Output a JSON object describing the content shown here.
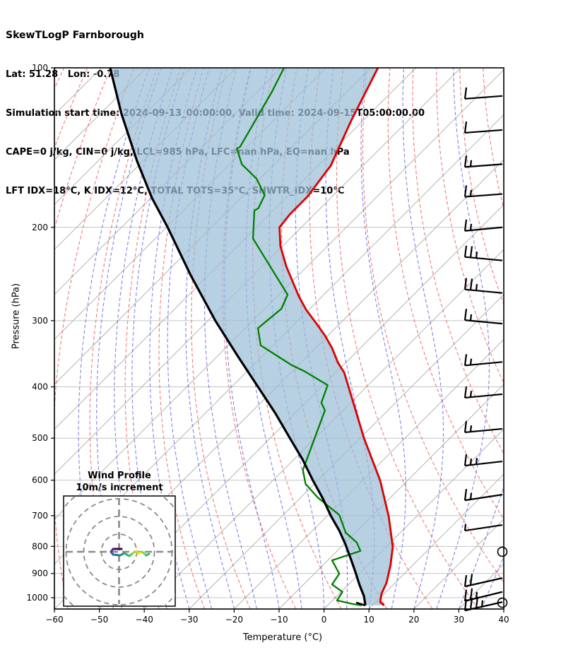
{
  "header": {
    "title": "SkewTLogP Farnborough",
    "latlon": "Lat: 51.28   Lon: -0.78",
    "sim_time": "Simulation start time: 2024-09-13_00:00:00, Valid time: 2024-09-15T05:00:00.00",
    "indices1": "CAPE=0 j/kg, CIN=0 j/kg, LCL=985 hPa, LFC=nan hPa, EQ=nan hPa",
    "indices2": "LFT IDX=18°C, K IDX=12°C, TOTAL TOTS=35°C, SHWTR_IDX=10°C"
  },
  "chart_data": {
    "type": "skewt_logp",
    "title": "SkewTLogP Farnborough",
    "xlabel": "Temperature (°C)",
    "ylabel": "Pressure (hPa)",
    "xlim": [
      -60,
      40
    ],
    "pressure_lim_hPa": [
      100,
      1050
    ],
    "x_ticks": [
      -60,
      -50,
      -40,
      -30,
      -20,
      -10,
      0,
      10,
      20,
      30,
      40
    ],
    "x_tick_labels": [
      "−60",
      "−50",
      "−40",
      "−30",
      "−20",
      "−10",
      "0",
      "10",
      "20",
      "30",
      "40"
    ],
    "y_ticks_hPa": [
      100,
      200,
      300,
      400,
      500,
      600,
      700,
      800,
      900,
      1000
    ],
    "grid": {
      "isotherm_step_c": 10,
      "dry_adiabat_theta_c": [
        -90,
        -80,
        -70,
        -60,
        -50,
        -40,
        -30,
        -20,
        -10,
        0,
        10,
        20,
        30,
        40,
        50,
        60,
        70,
        80,
        90,
        100
      ],
      "moist_adiabat_start_c": [
        -50,
        -45,
        -40,
        -35,
        -30,
        -25,
        -20,
        -15,
        -10,
        -5,
        0,
        5,
        10,
        15,
        20,
        25,
        30,
        35,
        40
      ],
      "isotherm_color": "#b3b3b3",
      "pressure_grid_color": "#c4c4c4",
      "dry_adiabat_color": "#ee5a5a",
      "moist_adiabat_color": "#5a5ae0"
    },
    "shading": {
      "between": [
        "parcel_path",
        "temperature"
      ],
      "meaning": "negative buoyancy area (CAPE=0)",
      "color": "rgba(155,190,215,0.72)"
    },
    "series": [
      {
        "name": "parcel_path",
        "color": "#000000",
        "width": 3.2,
        "points_xc_p": [
          [
            -47.6,
            100
          ],
          [
            -45.1,
            122
          ],
          [
            -41.6,
            150
          ],
          [
            -38.3,
            176
          ],
          [
            -34.8,
            200
          ],
          [
            -29.7,
            246
          ],
          [
            -24.2,
            300
          ],
          [
            -19.1,
            351
          ],
          [
            -14.7,
            400
          ],
          [
            -10.8,
            449
          ],
          [
            -7.6,
            500
          ],
          [
            -4.8,
            548
          ],
          [
            -2.5,
            600
          ],
          [
            -0.3,
            649
          ],
          [
            1.5,
            700
          ],
          [
            3.4,
            747
          ],
          [
            4.8,
            794
          ],
          [
            6.0,
            847
          ],
          [
            7.0,
            895
          ],
          [
            7.9,
            946
          ],
          [
            8.9,
            994
          ],
          [
            9.2,
            1034
          ]
        ]
      },
      {
        "name": "temperature",
        "color": "#dd0000",
        "width": 2.8,
        "points_xc_p": [
          [
            12.0,
            100
          ],
          [
            6.0,
            126
          ],
          [
            1.5,
            153
          ],
          [
            -3.7,
            175
          ],
          [
            -7.6,
            189
          ],
          [
            -9.9,
            200
          ],
          [
            -9.7,
            217
          ],
          [
            -8.4,
            237
          ],
          [
            -5.6,
            270
          ],
          [
            -4.0,
            286
          ],
          [
            -1.8,
            303
          ],
          [
            0.2,
            320
          ],
          [
            1.8,
            338
          ],
          [
            3.1,
            360
          ],
          [
            4.5,
            376
          ],
          [
            8.9,
            500
          ],
          [
            12.5,
            601
          ],
          [
            14.4,
            703
          ],
          [
            15.3,
            802
          ],
          [
            14.8,
            868
          ],
          [
            13.9,
            938
          ],
          [
            12.8,
            982
          ],
          [
            12.5,
            1019
          ],
          [
            13.4,
            1034
          ]
        ]
      },
      {
        "name": "dewpoint",
        "color": "#008000",
        "width": 2.3,
        "points_xc_p": [
          [
            -8.9,
            100
          ],
          [
            -11.6,
            111
          ],
          [
            -18.7,
            141
          ],
          [
            -19.4,
            142
          ],
          [
            -18.3,
            152
          ],
          [
            -15.0,
            162
          ],
          [
            -13.2,
            174
          ],
          [
            -14.6,
            184
          ],
          [
            -15.5,
            186
          ],
          [
            -15.8,
            210
          ],
          [
            -12.8,
            231
          ],
          [
            -8.1,
            268
          ],
          [
            -9.5,
            285
          ],
          [
            -14.7,
            310
          ],
          [
            -14.1,
            334
          ],
          [
            -7.2,
            364
          ],
          [
            -4.3,
            374
          ],
          [
            0.8,
            397
          ],
          [
            -0.6,
            429
          ],
          [
            0.2,
            443
          ],
          [
            -4.7,
            574
          ],
          [
            -4.1,
            610
          ],
          [
            -1.4,
            647
          ],
          [
            3.4,
            698
          ],
          [
            4.8,
            753
          ],
          [
            7.3,
            787
          ],
          [
            8.1,
            816
          ],
          [
            1.8,
            850
          ],
          [
            3.4,
            901
          ],
          [
            1.8,
            944
          ],
          [
            4.1,
            975
          ],
          [
            2.9,
            1012
          ],
          [
            6.5,
            1028
          ],
          [
            8.4,
            1034
          ]
        ]
      }
    ],
    "wind_barbs": {
      "units": "feathers: full=10, half=5 (m/s); calm shown as circle",
      "barbs": [
        {
          "p": 113,
          "feathers": [
            10
          ],
          "tilt": 4
        },
        {
          "p": 131,
          "feathers": [
            10
          ],
          "tilt": 4
        },
        {
          "p": 152,
          "feathers": [
            10,
            5
          ],
          "tilt": 4
        },
        {
          "p": 173,
          "feathers": [
            10,
            5
          ],
          "tilt": 4
        },
        {
          "p": 200,
          "feathers": [
            10,
            5
          ],
          "tilt": 5
        },
        {
          "p": 231,
          "feathers": [
            10,
            10,
            5
          ],
          "tilt": -5
        },
        {
          "p": 266,
          "feathers": [
            10,
            10,
            5
          ],
          "tilt": -5
        },
        {
          "p": 304,
          "feathers": [
            10,
            5
          ],
          "tilt": -5
        },
        {
          "p": 359,
          "feathers": [
            10,
            5
          ],
          "tilt": 5
        },
        {
          "p": 413,
          "feathers": [
            10,
            5
          ],
          "tilt": 5
        },
        {
          "p": 480,
          "feathers": [
            10,
            5
          ],
          "tilt": 5
        },
        {
          "p": 553,
          "feathers": [
            10,
            5,
            5
          ],
          "tilt": 6
        },
        {
          "p": 639,
          "feathers": [
            10,
            5
          ],
          "tilt": 8
        },
        {
          "p": 729,
          "feathers": [
            5
          ],
          "tilt": 8
        },
        {
          "p": 819,
          "calm": true
        },
        {
          "p": 918,
          "feathers": [
            10,
            10
          ],
          "tilt": 12
        },
        {
          "p": 975,
          "feathers": [
            10,
            10,
            5
          ],
          "tilt": 13
        },
        {
          "p": 1019,
          "feathers": [
            10,
            10,
            10,
            5
          ],
          "tilt": 12
        },
        {
          "p": 1022,
          "calm": true
        }
      ]
    }
  },
  "hodograph": {
    "title": "Wind Profile",
    "subtitle": "10m/s increment",
    "ring_step_ms": 10,
    "rings_ms": [
      10,
      20,
      30,
      40
    ],
    "trace_uv_ms": [
      [
        1.4,
        1.6
      ],
      [
        -3.4,
        1.6
      ],
      [
        -4.6,
        0
      ],
      [
        -3.4,
        -1.6
      ],
      [
        0.6,
        -2
      ],
      [
        3,
        -0.8
      ],
      [
        5.8,
        -2.4
      ],
      [
        7.8,
        -0.8
      ],
      [
        9.8,
        0.4
      ],
      [
        11,
        -1.2
      ],
      [
        13,
        0
      ],
      [
        15.4,
        -2
      ],
      [
        17,
        -1.2
      ]
    ],
    "trace_colors": [
      "#440154",
      "#472d7b",
      "#3b528b",
      "#2c728e",
      "#21918c",
      "#27ad81",
      "#4ac16d",
      "#a0da39",
      "#d8e219",
      "#fde725",
      "#7ad151",
      "#35b779"
    ]
  }
}
